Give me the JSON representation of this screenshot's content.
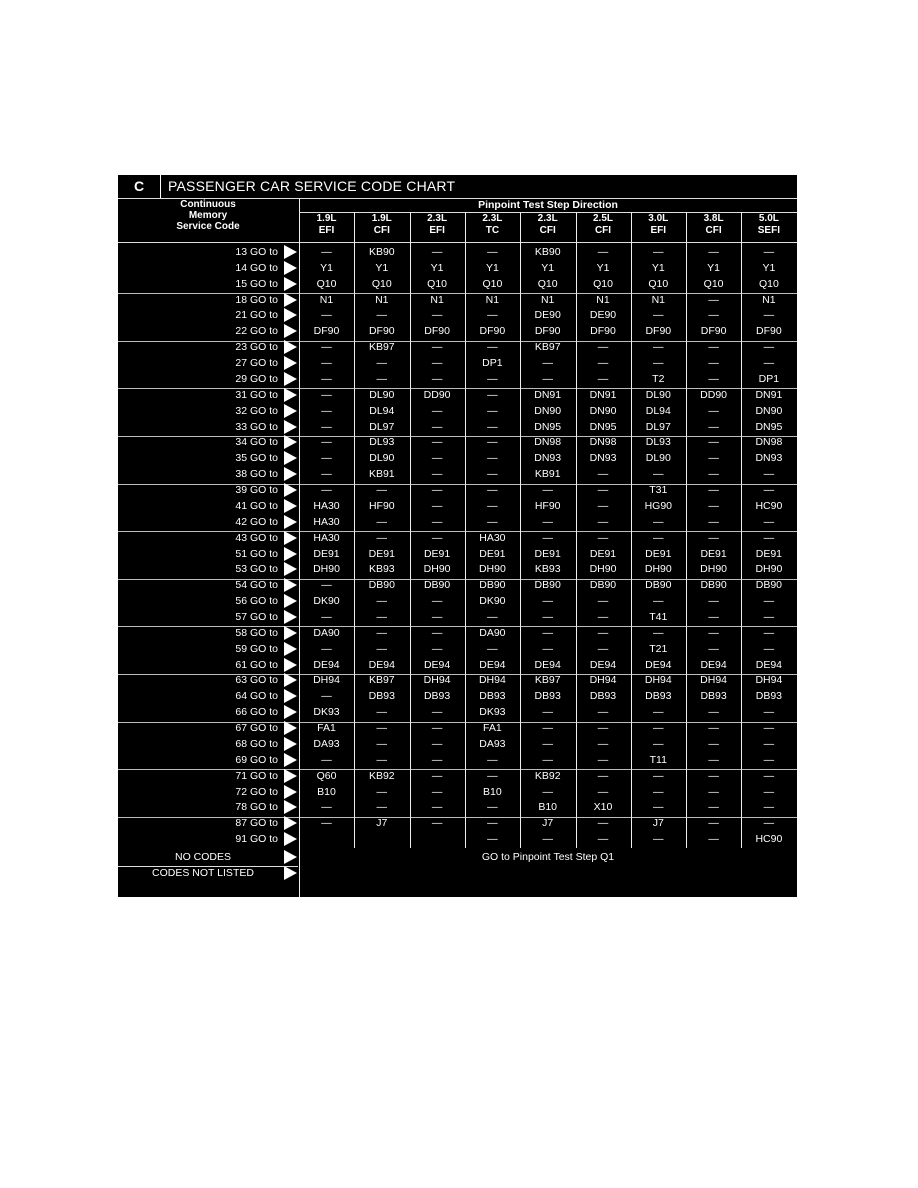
{
  "chart": {
    "section_letter": "C",
    "title": "PASSENGER CAR SERVICE CODE CHART",
    "left_header": [
      "Continuous",
      "Memory",
      "Service Code"
    ],
    "right_header": "Pinpoint Test Step Direction",
    "columns": [
      {
        "line1": "1.9L",
        "line2": "EFI"
      },
      {
        "line1": "1.9L",
        "line2": "CFI"
      },
      {
        "line1": "2.3L",
        "line2": "EFI"
      },
      {
        "line1": "2.3L",
        "line2": "TC"
      },
      {
        "line1": "2.3L",
        "line2": "CFI"
      },
      {
        "line1": "2.5L",
        "line2": "CFI"
      },
      {
        "line1": "3.0L",
        "line2": "EFI"
      },
      {
        "line1": "3.8L",
        "line2": "CFI"
      },
      {
        "line1": "5.0L",
        "line2": "SEFI"
      }
    ],
    "rows": [
      {
        "code": "13 GO to",
        "values": [
          "—",
          "KB90",
          "—",
          "—",
          "KB90",
          "—",
          "—",
          "—",
          "—"
        ]
      },
      {
        "code": "14 GO to",
        "values": [
          "Y1",
          "Y1",
          "Y1",
          "Y1",
          "Y1",
          "Y1",
          "Y1",
          "Y1",
          "Y1"
        ]
      },
      {
        "code": "15 GO to",
        "values": [
          "Q10",
          "Q10",
          "Q10",
          "Q10",
          "Q10",
          "Q10",
          "Q10",
          "Q10",
          "Q10"
        ]
      },
      {
        "code": "18 GO to",
        "values": [
          "N1",
          "N1",
          "N1",
          "N1",
          "N1",
          "N1",
          "N1",
          "—",
          "N1"
        ]
      },
      {
        "code": "21 GO to",
        "values": [
          "—",
          "—",
          "—",
          "—",
          "DE90",
          "DE90",
          "—",
          "—",
          "—"
        ]
      },
      {
        "code": "22 GO to",
        "values": [
          "DF90",
          "DF90",
          "DF90",
          "DF90",
          "DF90",
          "DF90",
          "DF90",
          "DF90",
          "DF90"
        ]
      },
      {
        "code": "23 GO to",
        "values": [
          "—",
          "KB97",
          "—",
          "—",
          "KB97",
          "—",
          "—",
          "—",
          "—"
        ]
      },
      {
        "code": "27 GO to",
        "values": [
          "—",
          "—",
          "—",
          "DP1",
          "—",
          "—",
          "—",
          "—",
          "—"
        ]
      },
      {
        "code": "29 GO to",
        "values": [
          "—",
          "—",
          "—",
          "—",
          "—",
          "—",
          "T2",
          "—",
          "DP1"
        ]
      },
      {
        "code": "31 GO to",
        "values": [
          "—",
          "DL90",
          "DD90",
          "—",
          "DN91",
          "DN91",
          "DL90",
          "DD90",
          "DN91"
        ]
      },
      {
        "code": "32 GO to",
        "values": [
          "—",
          "DL94",
          "—",
          "—",
          "DN90",
          "DN90",
          "DL94",
          "—",
          "DN90"
        ]
      },
      {
        "code": "33 GO to",
        "values": [
          "—",
          "DL97",
          "—",
          "—",
          "DN95",
          "DN95",
          "DL97",
          "—",
          "DN95"
        ]
      },
      {
        "code": "34 GO to",
        "values": [
          "—",
          "DL93",
          "—",
          "—",
          "DN98",
          "DN98",
          "DL93",
          "—",
          "DN98"
        ]
      },
      {
        "code": "35 GO to",
        "values": [
          "—",
          "DL90",
          "—",
          "—",
          "DN93",
          "DN93",
          "DL90",
          "—",
          "DN93"
        ]
      },
      {
        "code": "38 GO to",
        "values": [
          "—",
          "KB91",
          "—",
          "—",
          "KB91",
          "—",
          "—",
          "—",
          "—"
        ]
      },
      {
        "code": "39 GO to",
        "values": [
          "—",
          "—",
          "—",
          "—",
          "—",
          "—",
          "T31",
          "—",
          "—"
        ]
      },
      {
        "code": "41 GO to",
        "values": [
          "HA30",
          "HF90",
          "—",
          "—",
          "HF90",
          "—",
          "HG90",
          "—",
          "HC90"
        ]
      },
      {
        "code": "42 GO to",
        "values": [
          "HA30",
          "—",
          "—",
          "—",
          "—",
          "—",
          "—",
          "—",
          "—"
        ]
      },
      {
        "code": "43 GO to",
        "values": [
          "HA30",
          "—",
          "—",
          "HA30",
          "—",
          "—",
          "—",
          "—",
          "—"
        ]
      },
      {
        "code": "51 GO to",
        "values": [
          "DE91",
          "DE91",
          "DE91",
          "DE91",
          "DE91",
          "DE91",
          "DE91",
          "DE91",
          "DE91"
        ]
      },
      {
        "code": "53 GO to",
        "values": [
          "DH90",
          "KB93",
          "DH90",
          "DH90",
          "KB93",
          "DH90",
          "DH90",
          "DH90",
          "DH90"
        ]
      },
      {
        "code": "54 GO to",
        "values": [
          "—",
          "DB90",
          "DB90",
          "DB90",
          "DB90",
          "DB90",
          "DB90",
          "DB90",
          "DB90"
        ]
      },
      {
        "code": "56 GO to",
        "values": [
          "DK90",
          "—",
          "—",
          "DK90",
          "—",
          "—",
          "—",
          "—",
          "—"
        ]
      },
      {
        "code": "57 GO to",
        "values": [
          "—",
          "—",
          "—",
          "—",
          "—",
          "—",
          "T41",
          "—",
          "—"
        ]
      },
      {
        "code": "58 GO to",
        "values": [
          "DA90",
          "—",
          "—",
          "DA90",
          "—",
          "—",
          "—",
          "—",
          "—"
        ]
      },
      {
        "code": "59 GO to",
        "values": [
          "—",
          "—",
          "—",
          "—",
          "—",
          "—",
          "T21",
          "—",
          "—"
        ]
      },
      {
        "code": "61 GO to",
        "values": [
          "DE94",
          "DE94",
          "DE94",
          "DE94",
          "DE94",
          "DE94",
          "DE94",
          "DE94",
          "DE94"
        ]
      },
      {
        "code": "63 GO to",
        "values": [
          "DH94",
          "KB97",
          "DH94",
          "DH94",
          "KB97",
          "DH94",
          "DH94",
          "DH94",
          "DH94"
        ]
      },
      {
        "code": "64 GO to",
        "values": [
          "—",
          "DB93",
          "DB93",
          "DB93",
          "DB93",
          "DB93",
          "DB93",
          "DB93",
          "DB93"
        ]
      },
      {
        "code": "66 GO to",
        "values": [
          "DK93",
          "—",
          "—",
          "DK93",
          "—",
          "—",
          "—",
          "—",
          "—"
        ]
      },
      {
        "code": "67 GO to",
        "values": [
          "FA1",
          "—",
          "—",
          "FA1",
          "—",
          "—",
          "—",
          "—",
          "—"
        ]
      },
      {
        "code": "68 GO to",
        "values": [
          "DA93",
          "—",
          "—",
          "DA93",
          "—",
          "—",
          "—",
          "—",
          "—"
        ]
      },
      {
        "code": "69 GO to",
        "values": [
          "—",
          "—",
          "—",
          "—",
          "—",
          "—",
          "T11",
          "—",
          "—"
        ]
      },
      {
        "code": "71 GO to",
        "values": [
          "Q60",
          "KB92",
          "—",
          "—",
          "KB92",
          "—",
          "—",
          "—",
          "—"
        ]
      },
      {
        "code": "72 GO to",
        "values": [
          "B10",
          "—",
          "—",
          "B10",
          "—",
          "—",
          "—",
          "—",
          "—"
        ]
      },
      {
        "code": "78 GO to",
        "values": [
          "—",
          "—",
          "—",
          "—",
          "B10",
          "X10",
          "—",
          "—",
          "—"
        ]
      },
      {
        "code": "87 GO to",
        "values": [
          "—",
          "J7",
          "—",
          "—",
          "J7",
          "—",
          "J7",
          "—",
          "—"
        ]
      },
      {
        "code": "91 GO to",
        "values": [
          "",
          "",
          "",
          "—",
          "—",
          "—",
          "—",
          "—",
          "HC90"
        ]
      }
    ],
    "footer_rows": [
      {
        "code": "NO CODES"
      },
      {
        "code": "CODES NOT LISTED"
      }
    ],
    "footer_text": "GO to Pinpoint Test Step Q1"
  }
}
